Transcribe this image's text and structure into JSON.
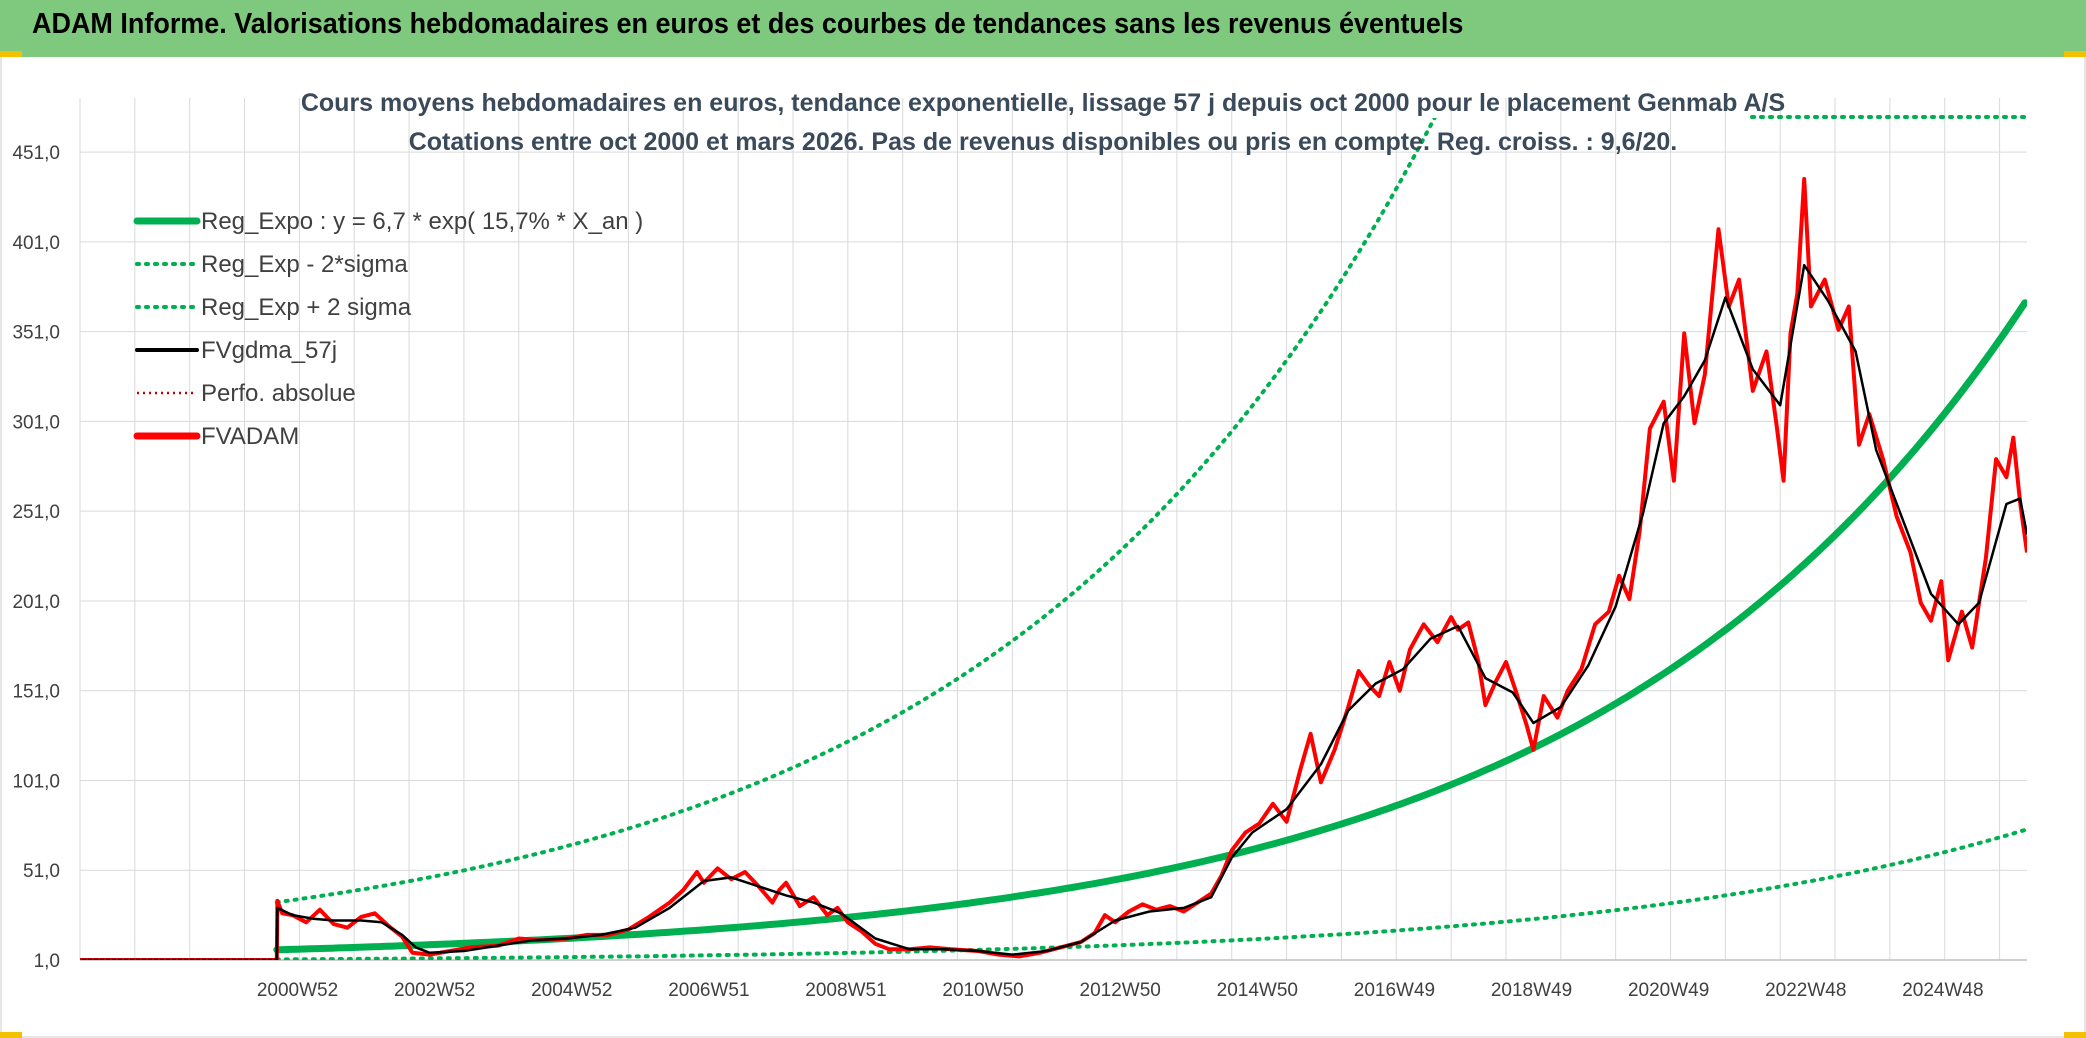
{
  "header": {
    "title": "ADAM Informe. Valorisations hebdomadaires en euros et des courbes de tendances sans les revenus éventuels"
  },
  "colors": {
    "title_bar": "#7fc97f",
    "reg_expo": "#00b050",
    "fvgdma": "#000000",
    "fvadam": "#ff0000",
    "perfo": "#c00000",
    "grid": "#d9d9d9"
  },
  "chart_data": {
    "type": "line",
    "title": "Cours moyens hebdomadaires en euros, tendance exponentielle, lissage 57 j depuis oct 2000 pour le placement Genmab A/S",
    "subtitle": "Cotations entre oct 2000 et mars 2026. Pas de revenus disponibles ou pris en compte. Reg. croiss. : 9,6/20.",
    "y_ticks": [
      "1,0",
      "51,0",
      "101,0",
      "151,0",
      "201,0",
      "251,0",
      "301,0",
      "351,0",
      "401,0",
      "451,0"
    ],
    "ylim": [
      1,
      470
    ],
    "x_ticks": [
      {
        "label": "2000W52",
        "t": 2001.0
      },
      {
        "label": "2002W52",
        "t": 2003.0
      },
      {
        "label": "2004W52",
        "t": 2005.0
      },
      {
        "label": "2006W51",
        "t": 2007.0
      },
      {
        "label": "2008W51",
        "t": 2009.0
      },
      {
        "label": "2010W50",
        "t": 2011.0
      },
      {
        "label": "2012W50",
        "t": 2013.0
      },
      {
        "label": "2014W50",
        "t": 2015.0
      },
      {
        "label": "2016W49",
        "t": 2017.0
      },
      {
        "label": "2018W49",
        "t": 2019.0
      },
      {
        "label": "2020W49",
        "t": 2021.0
      },
      {
        "label": "2022W48",
        "t": 2023.0
      },
      {
        "label": "2024W48",
        "t": 2025.0
      }
    ],
    "legend": [
      {
        "name": "Reg_Expo : y = 6,7 * exp( 15,7% *  X_an )",
        "style": "solid-thick",
        "color": "#00b050"
      },
      {
        "name": "Reg_Exp - 2*sigma",
        "style": "dotted",
        "color": "#00b050"
      },
      {
        "name": "Reg_Exp + 2 sigma",
        "style": "dotted",
        "color": "#00b050"
      },
      {
        "name": "FVgdma_57j",
        "style": "solid",
        "color": "#000000"
      },
      {
        "name": "Perfo. absolue",
        "style": "dotted",
        "color": "#c00000"
      },
      {
        "name": "FVADAM",
        "style": "solid-thick",
        "color": "#ff0000"
      }
    ],
    "series": [
      {
        "name": "FVADAM",
        "color": "#ff0000",
        "points": [
          [
            1997.9,
            1
          ],
          [
            2000.77,
            1
          ],
          [
            2000.78,
            34
          ],
          [
            2000.85,
            27
          ],
          [
            2001.0,
            26
          ],
          [
            2001.2,
            22
          ],
          [
            2001.4,
            29
          ],
          [
            2001.6,
            21
          ],
          [
            2001.8,
            19
          ],
          [
            2002.0,
            25
          ],
          [
            2002.2,
            27
          ],
          [
            2002.4,
            20
          ],
          [
            2002.6,
            14
          ],
          [
            2002.75,
            5
          ],
          [
            2003.0,
            4
          ],
          [
            2003.3,
            6
          ],
          [
            2003.6,
            8
          ],
          [
            2004.0,
            9
          ],
          [
            2004.3,
            13
          ],
          [
            2004.6,
            12
          ],
          [
            2005.0,
            13
          ],
          [
            2005.3,
            15
          ],
          [
            2005.6,
            15
          ],
          [
            2005.9,
            18
          ],
          [
            2006.2,
            25
          ],
          [
            2006.5,
            33
          ],
          [
            2006.7,
            40
          ],
          [
            2006.9,
            50
          ],
          [
            2007.0,
            44
          ],
          [
            2007.2,
            52
          ],
          [
            2007.4,
            46
          ],
          [
            2007.6,
            50
          ],
          [
            2007.8,
            42
          ],
          [
            2008.0,
            33
          ],
          [
            2008.1,
            40
          ],
          [
            2008.2,
            44
          ],
          [
            2008.4,
            31
          ],
          [
            2008.6,
            36
          ],
          [
            2008.8,
            26
          ],
          [
            2008.95,
            30
          ],
          [
            2009.1,
            22
          ],
          [
            2009.3,
            17
          ],
          [
            2009.5,
            10
          ],
          [
            2009.7,
            7
          ],
          [
            2010.0,
            7
          ],
          [
            2010.3,
            8
          ],
          [
            2010.6,
            7
          ],
          [
            2011.0,
            6
          ],
          [
            2011.3,
            4
          ],
          [
            2011.6,
            3
          ],
          [
            2011.9,
            5
          ],
          [
            2012.2,
            8
          ],
          [
            2012.5,
            11
          ],
          [
            2012.7,
            16
          ],
          [
            2012.85,
            26
          ],
          [
            2013.0,
            22
          ],
          [
            2013.2,
            28
          ],
          [
            2013.4,
            32
          ],
          [
            2013.6,
            29
          ],
          [
            2013.8,
            31
          ],
          [
            2014.0,
            28
          ],
          [
            2014.2,
            33
          ],
          [
            2014.4,
            38
          ],
          [
            2014.55,
            48
          ],
          [
            2014.7,
            62
          ],
          [
            2014.9,
            72
          ],
          [
            2015.1,
            77
          ],
          [
            2015.3,
            88
          ],
          [
            2015.5,
            78
          ],
          [
            2015.7,
            107
          ],
          [
            2015.85,
            127
          ],
          [
            2016.0,
            100
          ],
          [
            2016.2,
            118
          ],
          [
            2016.4,
            142
          ],
          [
            2016.55,
            162
          ],
          [
            2016.7,
            154
          ],
          [
            2016.85,
            148
          ],
          [
            2017.0,
            167
          ],
          [
            2017.15,
            151
          ],
          [
            2017.3,
            174
          ],
          [
            2017.5,
            188
          ],
          [
            2017.7,
            178
          ],
          [
            2017.9,
            192
          ],
          [
            2018.0,
            185
          ],
          [
            2018.15,
            189
          ],
          [
            2018.3,
            167
          ],
          [
            2018.4,
            143
          ],
          [
            2018.55,
            156
          ],
          [
            2018.7,
            167
          ],
          [
            2018.85,
            150
          ],
          [
            2019.0,
            132
          ],
          [
            2019.1,
            118
          ],
          [
            2019.25,
            148
          ],
          [
            2019.45,
            136
          ],
          [
            2019.6,
            151
          ],
          [
            2019.8,
            163
          ],
          [
            2020.0,
            188
          ],
          [
            2020.2,
            195
          ],
          [
            2020.35,
            215
          ],
          [
            2020.5,
            202
          ],
          [
            2020.65,
            240
          ],
          [
            2020.8,
            297
          ],
          [
            2021.0,
            312
          ],
          [
            2021.15,
            268
          ],
          [
            2021.3,
            350
          ],
          [
            2021.45,
            300
          ],
          [
            2021.6,
            327
          ],
          [
            2021.8,
            408
          ],
          [
            2021.95,
            365
          ],
          [
            2022.1,
            380
          ],
          [
            2022.3,
            318
          ],
          [
            2022.5,
            340
          ],
          [
            2022.65,
            298
          ],
          [
            2022.75,
            268
          ],
          [
            2022.85,
            350
          ],
          [
            2022.95,
            372
          ],
          [
            2023.05,
            436
          ],
          [
            2023.15,
            365
          ],
          [
            2023.35,
            380
          ],
          [
            2023.55,
            352
          ],
          [
            2023.7,
            365
          ],
          [
            2023.85,
            288
          ],
          [
            2024.0,
            305
          ],
          [
            2024.2,
            280
          ],
          [
            2024.4,
            248
          ],
          [
            2024.6,
            228
          ],
          [
            2024.75,
            200
          ],
          [
            2024.9,
            190
          ],
          [
            2025.05,
            212
          ],
          [
            2025.15,
            168
          ],
          [
            2025.35,
            195
          ],
          [
            2025.5,
            175
          ],
          [
            2025.7,
            225
          ],
          [
            2025.85,
            280
          ],
          [
            2026.0,
            270
          ],
          [
            2026.1,
            292
          ],
          [
            2026.2,
            256
          ],
          [
            2026.3,
            228
          ]
        ]
      },
      {
        "name": "FVgdma_57j",
        "color": "#000000",
        "points": [
          [
            1997.9,
            1
          ],
          [
            2000.77,
            1
          ],
          [
            2000.78,
            30
          ],
          [
            2001.0,
            26
          ],
          [
            2001.3,
            24
          ],
          [
            2001.6,
            23
          ],
          [
            2002.0,
            23
          ],
          [
            2002.3,
            22
          ],
          [
            2002.6,
            15
          ],
          [
            2002.8,
            8
          ],
          [
            2003.0,
            5
          ],
          [
            2003.5,
            6
          ],
          [
            2004.0,
            9
          ],
          [
            2004.5,
            12
          ],
          [
            2005.0,
            13
          ],
          [
            2005.5,
            15
          ],
          [
            2006.0,
            19
          ],
          [
            2006.5,
            30
          ],
          [
            2007.0,
            45
          ],
          [
            2007.4,
            47
          ],
          [
            2007.8,
            42
          ],
          [
            2008.2,
            37
          ],
          [
            2008.6,
            33
          ],
          [
            2009.0,
            27
          ],
          [
            2009.5,
            13
          ],
          [
            2010.0,
            7
          ],
          [
            2010.5,
            7
          ],
          [
            2011.0,
            6
          ],
          [
            2011.5,
            4
          ],
          [
            2012.0,
            6
          ],
          [
            2012.5,
            11
          ],
          [
            2013.0,
            23
          ],
          [
            2013.5,
            28
          ],
          [
            2014.0,
            30
          ],
          [
            2014.4,
            36
          ],
          [
            2014.7,
            58
          ],
          [
            2015.0,
            72
          ],
          [
            2015.5,
            85
          ],
          [
            2016.0,
            110
          ],
          [
            2016.4,
            140
          ],
          [
            2016.8,
            155
          ],
          [
            2017.2,
            163
          ],
          [
            2017.6,
            180
          ],
          [
            2018.0,
            187
          ],
          [
            2018.4,
            158
          ],
          [
            2018.8,
            150
          ],
          [
            2019.1,
            133
          ],
          [
            2019.5,
            142
          ],
          [
            2019.9,
            165
          ],
          [
            2020.3,
            198
          ],
          [
            2020.7,
            250
          ],
          [
            2021.0,
            300
          ],
          [
            2021.3,
            315
          ],
          [
            2021.6,
            335
          ],
          [
            2021.9,
            370
          ],
          [
            2022.3,
            330
          ],
          [
            2022.7,
            310
          ],
          [
            2023.05,
            388
          ],
          [
            2023.4,
            368
          ],
          [
            2023.8,
            340
          ],
          [
            2024.1,
            285
          ],
          [
            2024.5,
            245
          ],
          [
            2024.9,
            205
          ],
          [
            2025.3,
            188
          ],
          [
            2025.6,
            200
          ],
          [
            2026.0,
            255
          ],
          [
            2026.2,
            258
          ],
          [
            2026.3,
            238
          ]
        ]
      },
      {
        "name": "Perfo. absolue",
        "color": "#c00000",
        "points": [
          [
            1997.9,
            1
          ],
          [
            2000.77,
            1
          ]
        ]
      }
    ],
    "regression": {
      "name": "Reg_Expo : y = 6,7 * exp( 15,7% *  X_an )",
      "a": 6.7,
      "b": 0.157,
      "t0": 2000.77,
      "t_end": 2026.3,
      "plus_2sigma_factor": 4.95,
      "minus_2sigma_factor": 0.2
    }
  }
}
